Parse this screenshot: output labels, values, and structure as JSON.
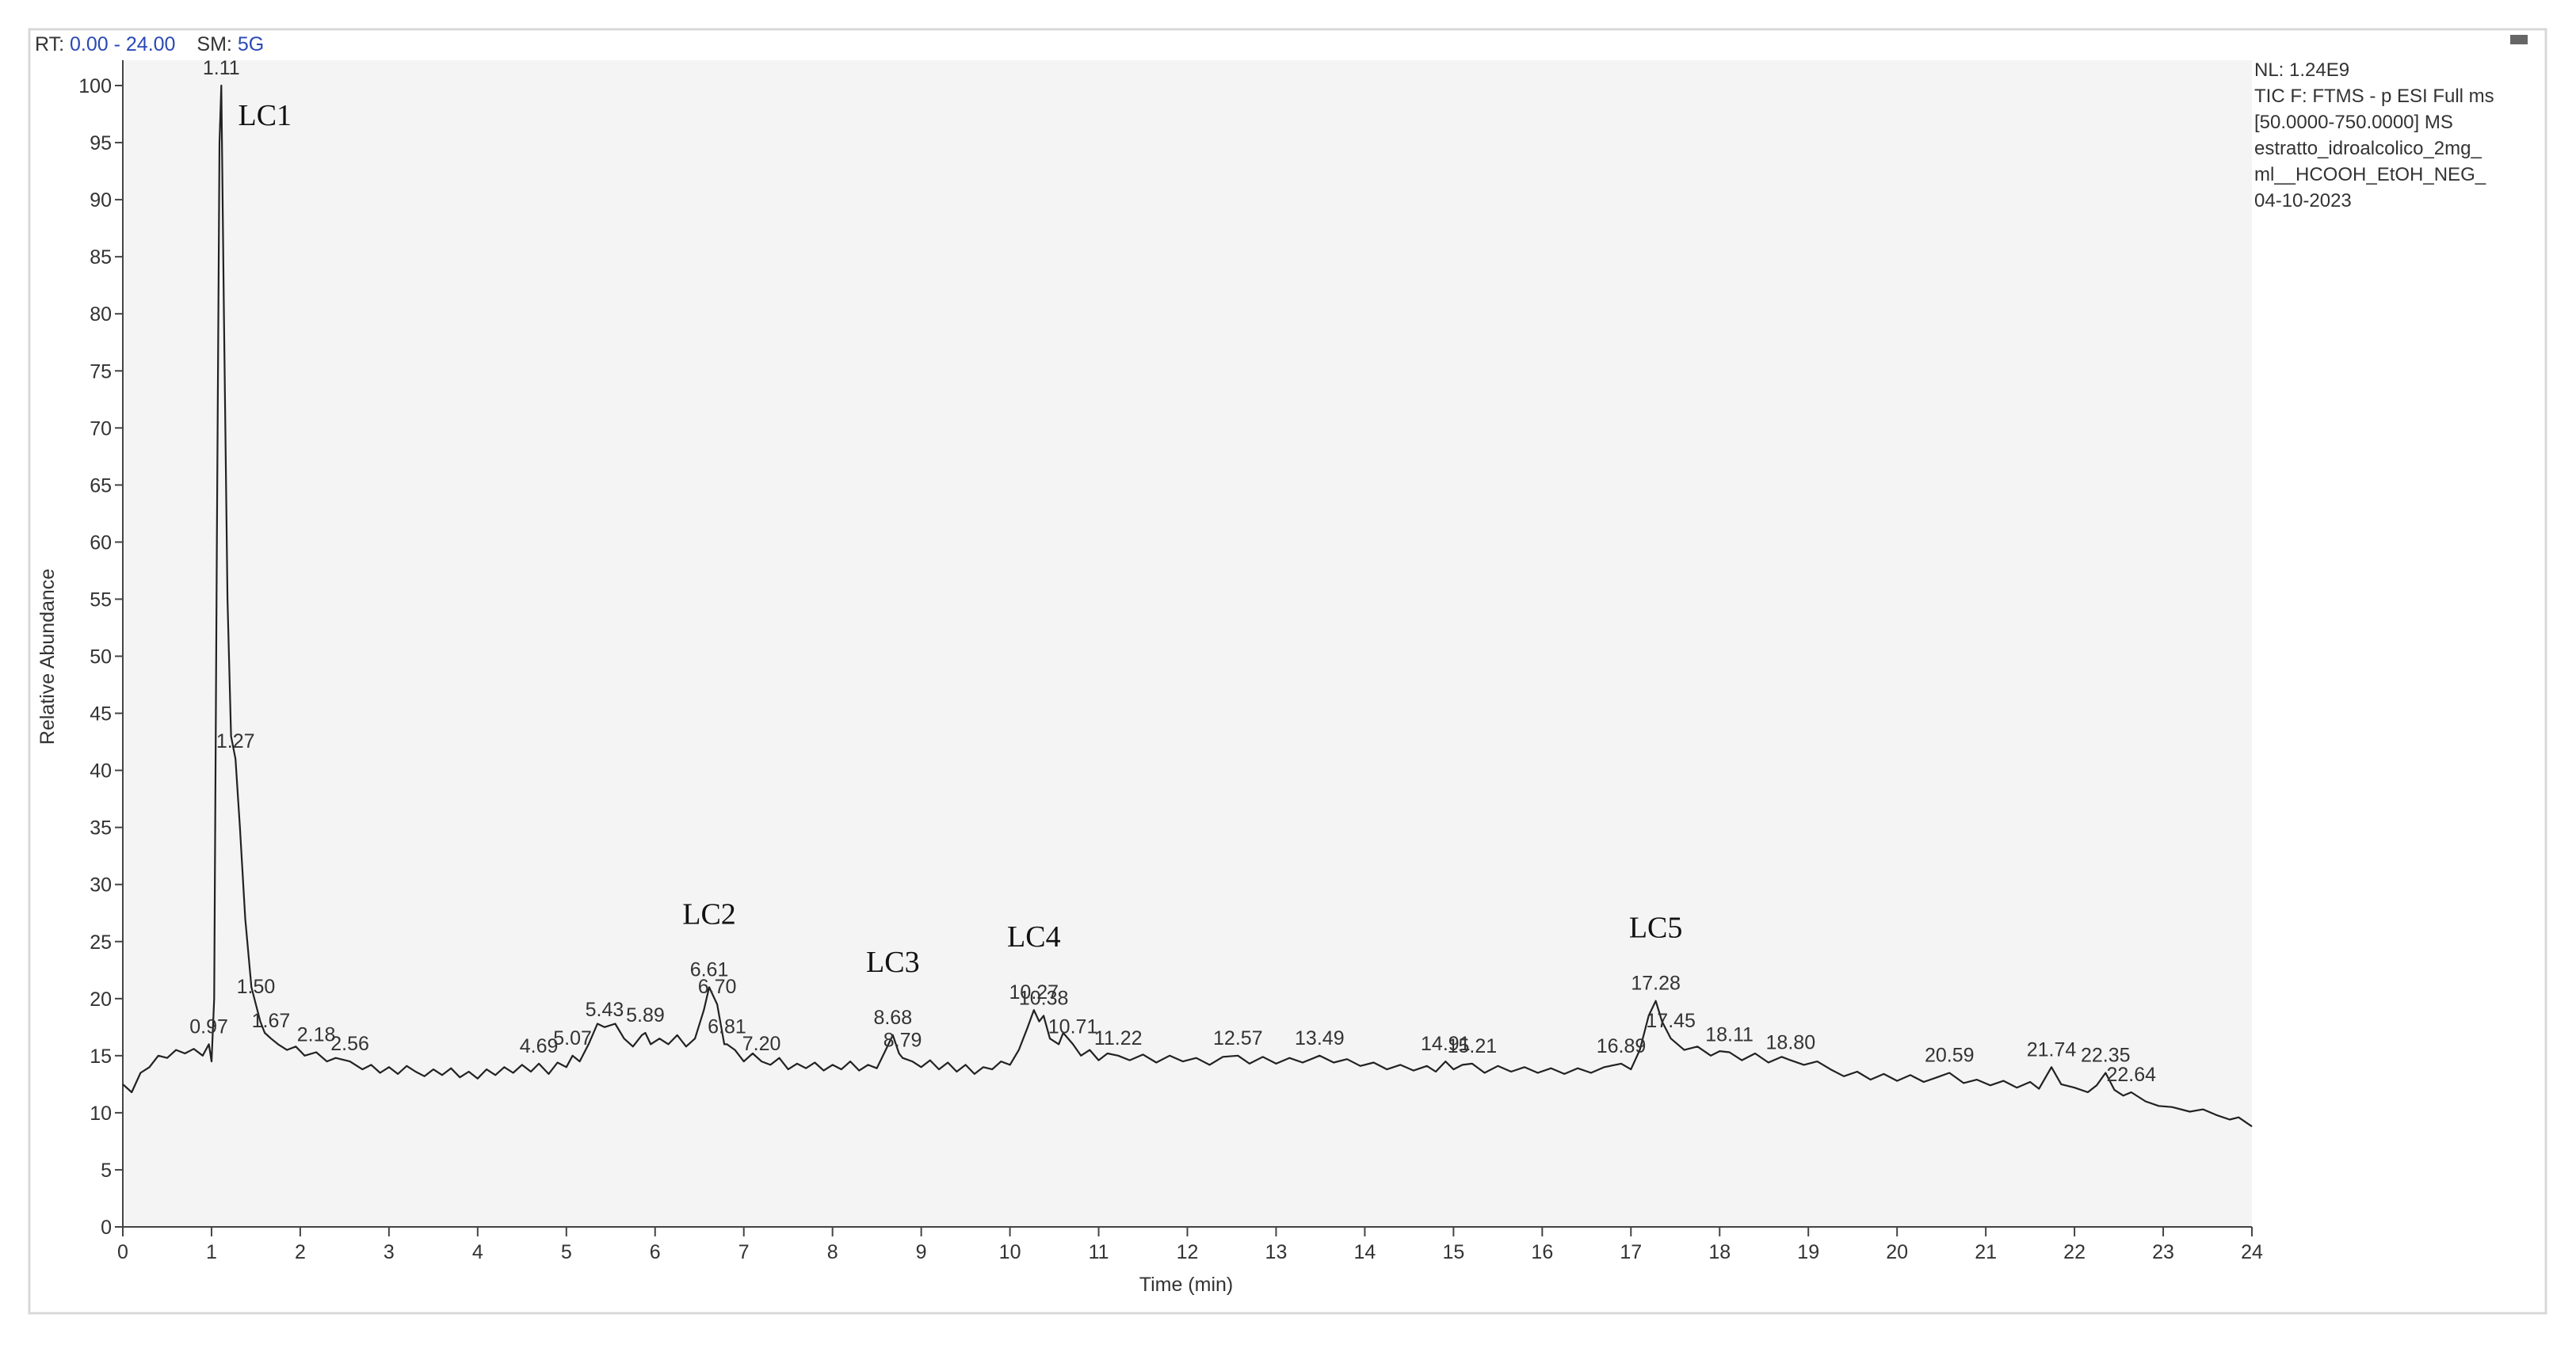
{
  "chart_data": {
    "type": "line",
    "header": {
      "rt": "RT:",
      "range": "0.00 - 24.00",
      "sm": "SM:",
      "smooth": "5G"
    },
    "info": [
      "NL: 1.24E9",
      "TIC F: FTMS - p ESI Full ms",
      "[50.0000-750.0000]  MS",
      "estratto_idroalcolico_2mg_",
      "ml__HCOOH_EtOH_NEG_",
      "04-10-2023"
    ],
    "xlabel": "Time (min)",
    "ylabel": "Relative Abundance",
    "xlim": [
      0,
      24
    ],
    "ylim": [
      0,
      100
    ],
    "xticks": [
      0,
      1,
      2,
      3,
      4,
      5,
      6,
      7,
      8,
      9,
      10,
      11,
      12,
      13,
      14,
      15,
      16,
      17,
      18,
      19,
      20,
      21,
      22,
      23,
      24
    ],
    "yticks": [
      0,
      5,
      10,
      15,
      20,
      25,
      30,
      35,
      40,
      45,
      50,
      55,
      60,
      65,
      70,
      75,
      80,
      85,
      90,
      95,
      100
    ],
    "color": "#222222",
    "x": [
      0,
      0.1,
      0.2,
      0.3,
      0.4,
      0.5,
      0.6,
      0.7,
      0.8,
      0.9,
      0.97,
      1.0,
      1.03,
      1.06,
      1.09,
      1.11,
      1.14,
      1.18,
      1.22,
      1.27,
      1.32,
      1.38,
      1.45,
      1.5,
      1.55,
      1.6,
      1.67,
      1.75,
      1.85,
      1.95,
      2.05,
      2.18,
      2.3,
      2.4,
      2.56,
      2.7,
      2.8,
      2.9,
      3.0,
      3.1,
      3.2,
      3.3,
      3.4,
      3.5,
      3.6,
      3.7,
      3.8,
      3.9,
      4.0,
      4.1,
      4.2,
      4.3,
      4.4,
      4.5,
      4.6,
      4.69,
      4.8,
      4.9,
      5.0,
      5.07,
      5.15,
      5.25,
      5.35,
      5.43,
      5.55,
      5.65,
      5.75,
      5.85,
      5.89,
      5.95,
      6.05,
      6.15,
      6.25,
      6.35,
      6.45,
      6.55,
      6.61,
      6.7,
      6.78,
      6.81,
      6.9,
      7.0,
      7.1,
      7.2,
      7.3,
      7.4,
      7.5,
      7.6,
      7.7,
      7.8,
      7.9,
      8.0,
      8.1,
      8.2,
      8.3,
      8.4,
      8.5,
      8.6,
      8.68,
      8.75,
      8.79,
      8.9,
      9.0,
      9.1,
      9.2,
      9.3,
      9.4,
      9.5,
      9.6,
      9.7,
      9.8,
      9.9,
      10.0,
      10.1,
      10.2,
      10.27,
      10.33,
      10.38,
      10.45,
      10.55,
      10.6,
      10.71,
      10.8,
      10.9,
      11.0,
      11.1,
      11.22,
      11.35,
      11.5,
      11.65,
      11.8,
      11.95,
      12.1,
      12.25,
      12.4,
      12.57,
      12.7,
      12.85,
      13.0,
      13.15,
      13.3,
      13.49,
      13.65,
      13.8,
      13.95,
      14.1,
      14.25,
      14.4,
      14.55,
      14.7,
      14.8,
      14.91,
      15.0,
      15.1,
      15.21,
      15.35,
      15.5,
      15.65,
      15.8,
      15.95,
      16.1,
      16.25,
      16.4,
      16.55,
      16.7,
      16.89,
      17.0,
      17.1,
      17.2,
      17.28,
      17.35,
      17.45,
      17.6,
      17.75,
      17.9,
      18.0,
      18.11,
      18.25,
      18.4,
      18.55,
      18.7,
      18.8,
      18.95,
      19.1,
      19.25,
      19.4,
      19.55,
      19.7,
      19.85,
      20.0,
      20.15,
      20.3,
      20.45,
      20.59,
      20.75,
      20.9,
      21.05,
      21.2,
      21.35,
      21.5,
      21.6,
      21.74,
      21.85,
      22.0,
      22.15,
      22.25,
      22.35,
      22.45,
      22.55,
      22.64,
      22.8,
      22.95,
      23.1,
      23.3,
      23.45,
      23.6,
      23.75,
      23.85,
      24.0
    ],
    "values": [
      12.5,
      11.8,
      13.5,
      14,
      15,
      14.8,
      15.5,
      15.2,
      15.6,
      15,
      16,
      14.5,
      20,
      60,
      95,
      100,
      80,
      55,
      43,
      41,
      35,
      27,
      21,
      19.5,
      18,
      17,
      16.5,
      16,
      15.5,
      15.8,
      15,
      15.3,
      14.5,
      14.8,
      14.5,
      13.8,
      14.2,
      13.5,
      14,
      13.4,
      14.1,
      13.6,
      13.2,
      13.8,
      13.3,
      13.9,
      13.1,
      13.6,
      13.0,
      13.8,
      13.3,
      14,
      13.5,
      14.2,
      13.6,
      14.3,
      13.4,
      14.4,
      14,
      15,
      14.5,
      16,
      17.8,
      17.5,
      17.8,
      16.5,
      15.8,
      16.8,
      17,
      16,
      16.5,
      16,
      16.8,
      15.8,
      16.5,
      19,
      21,
      19.5,
      16,
      16,
      15.5,
      14.5,
      15.2,
      14.5,
      14.2,
      14.8,
      13.8,
      14.3,
      13.9,
      14.4,
      13.7,
      14.2,
      13.8,
      14.5,
      13.7,
      14.2,
      13.9,
      15.5,
      16.8,
      15.2,
      14.8,
      14.5,
      14,
      14.6,
      13.8,
      14.4,
      13.6,
      14.2,
      13.4,
      14,
      13.8,
      14.5,
      14.2,
      15.5,
      17.5,
      19,
      18,
      18.5,
      16.5,
      16,
      17,
      16,
      15,
      15.5,
      14.6,
      15.2,
      15,
      14.6,
      15.1,
      14.4,
      15,
      14.5,
      14.8,
      14.2,
      14.9,
      15,
      14.3,
      14.9,
      14.3,
      14.8,
      14.4,
      15,
      14.4,
      14.7,
      14.1,
      14.4,
      13.8,
      14.2,
      13.7,
      14.1,
      13.6,
      14.5,
      13.8,
      14.2,
      14.3,
      13.5,
      14.1,
      13.6,
      14,
      13.5,
      13.9,
      13.4,
      13.9,
      13.5,
      14,
      14.3,
      13.8,
      15.5,
      18.5,
      19.8,
      18,
      16.5,
      15.5,
      15.8,
      15,
      15.4,
      15.3,
      14.6,
      15.2,
      14.4,
      14.9,
      14.6,
      14.2,
      14.5,
      13.8,
      13.2,
      13.6,
      12.9,
      13.4,
      12.8,
      13.3,
      12.7,
      13.1,
      13.5,
      12.6,
      12.9,
      12.4,
      12.8,
      12.2,
      12.7,
      12.1,
      14,
      12.5,
      12.2,
      11.8,
      12.4,
      13.5,
      12,
      11.5,
      11.8,
      11,
      10.6,
      10.5,
      10.1,
      10.3,
      9.8,
      9.4,
      9.6,
      8.8
    ],
    "peaks": [
      {
        "label": "0.97",
        "x": 0.97,
        "y": 16
      },
      {
        "label": "1.11",
        "x": 1.11,
        "y": 100,
        "annotation": "LC1"
      },
      {
        "label": "1.27",
        "x": 1.27,
        "y": 41
      },
      {
        "label": "1.50",
        "x": 1.5,
        "y": 19.5
      },
      {
        "label": "1.67",
        "x": 1.67,
        "y": 16.5
      },
      {
        "label": "2.18",
        "x": 2.18,
        "y": 15.3
      },
      {
        "label": "2.56",
        "x": 2.56,
        "y": 14.5
      },
      {
        "label": "4.69",
        "x": 4.69,
        "y": 14.3
      },
      {
        "label": "5.07",
        "x": 5.07,
        "y": 15
      },
      {
        "label": "5.43",
        "x": 5.43,
        "y": 17.5
      },
      {
        "label": "5.89",
        "x": 5.89,
        "y": 17
      },
      {
        "label": "6.61",
        "x": 6.61,
        "y": 21,
        "annotation": "LC2"
      },
      {
        "label": "6.70",
        "x": 6.7,
        "y": 19.5
      },
      {
        "label": "6.81",
        "x": 6.81,
        "y": 16
      },
      {
        "label": "7.20",
        "x": 7.2,
        "y": 14.5
      },
      {
        "label": "8.68",
        "x": 8.68,
        "y": 16.8,
        "annotation": "LC3"
      },
      {
        "label": "8.79",
        "x": 8.79,
        "y": 14.8
      },
      {
        "label": "10.27",
        "x": 10.27,
        "y": 19,
        "annotation": "LC4"
      },
      {
        "label": "10.38",
        "x": 10.38,
        "y": 18.5
      },
      {
        "label": "10.71",
        "x": 10.71,
        "y": 16
      },
      {
        "label": "11.22",
        "x": 11.22,
        "y": 15
      },
      {
        "label": "12.57",
        "x": 12.57,
        "y": 15
      },
      {
        "label": "13.49",
        "x": 13.49,
        "y": 15
      },
      {
        "label": "14.91",
        "x": 14.91,
        "y": 14.5
      },
      {
        "label": "15.21",
        "x": 15.21,
        "y": 14.3
      },
      {
        "label": "16.89",
        "x": 16.89,
        "y": 14.3
      },
      {
        "label": "17.28",
        "x": 17.28,
        "y": 19.8,
        "annotation": "LC5"
      },
      {
        "label": "17.45",
        "x": 17.45,
        "y": 16.5
      },
      {
        "label": "18.11",
        "x": 18.11,
        "y": 15.3
      },
      {
        "label": "18.80",
        "x": 18.8,
        "y": 14.6
      },
      {
        "label": "20.59",
        "x": 20.59,
        "y": 13.5
      },
      {
        "label": "21.74",
        "x": 21.74,
        "y": 14
      },
      {
        "label": "22.35",
        "x": 22.35,
        "y": 13.5
      },
      {
        "label": "22.64",
        "x": 22.64,
        "y": 11.8
      }
    ]
  }
}
